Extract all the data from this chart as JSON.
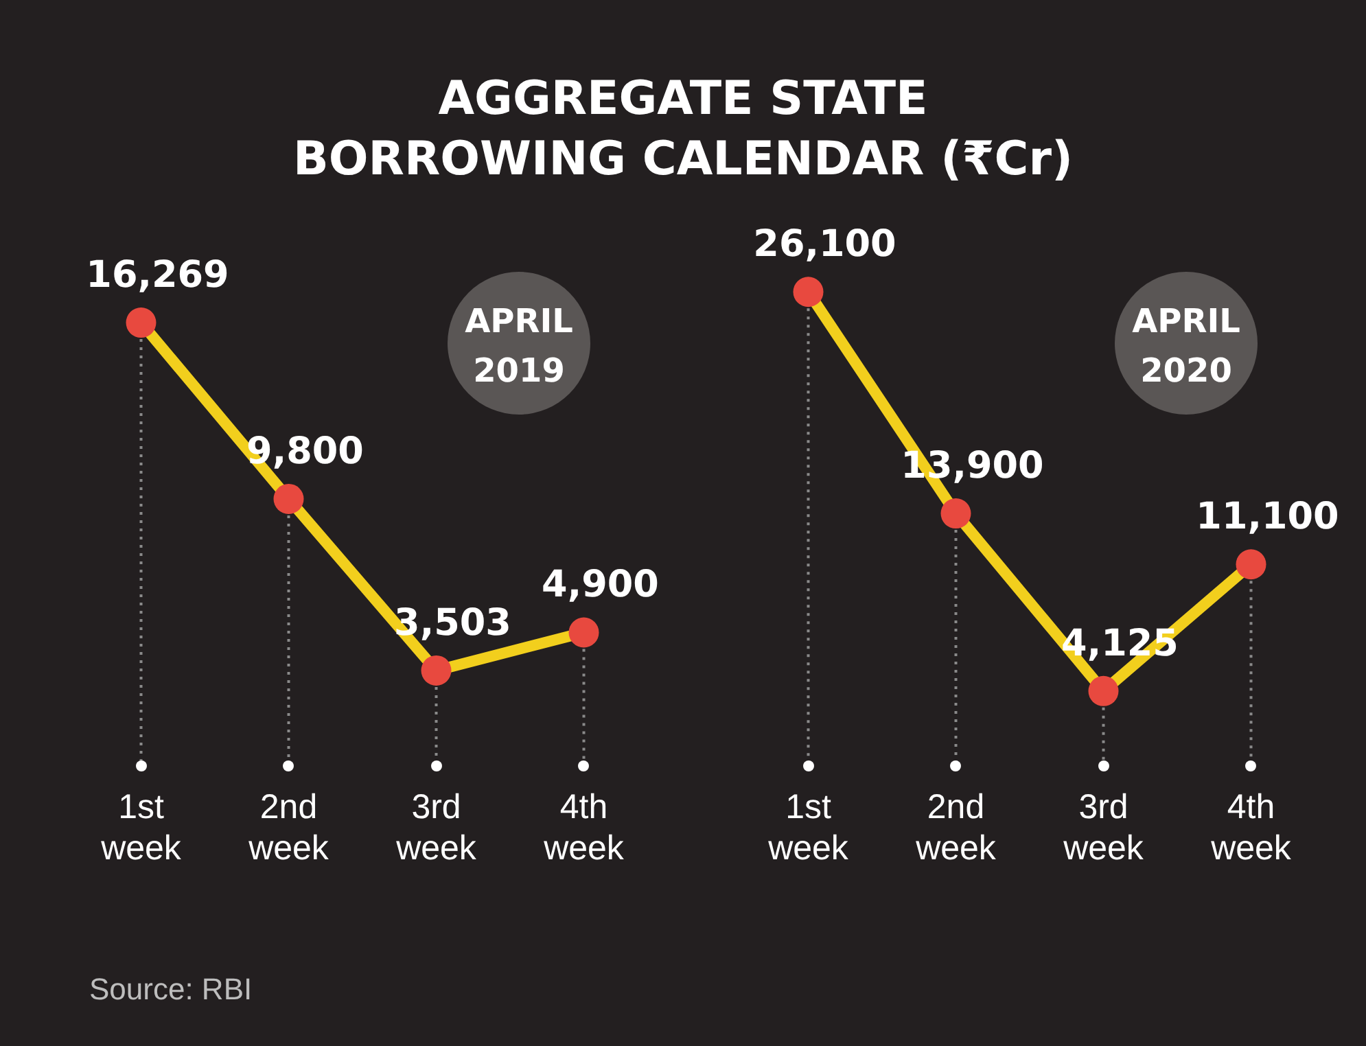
{
  "chart_data": [
    {
      "type": "line",
      "title": "AGGREGATE STATE BORROWING CALENDAR (₹Cr)",
      "subtitle": "APRIL 2019",
      "categories": [
        "1st week",
        "2nd week",
        "3rd week",
        "4th week"
      ],
      "series": [
        {
          "color": "#f2cf1d",
          "colors": [
            "#e8493f",
            "#e8493f",
            "#e8493f",
            "#e8493f"
          ],
          "values": [
            16269,
            9800,
            3503,
            4900
          ],
          "value_labels": [
            "16,269",
            "9,800",
            "3,503",
            "4,900"
          ]
        }
      ],
      "tick_labels": "x",
      "marker": "circle",
      "legend": false,
      "grid": "x",
      "annotations": [
        "Source: RBI"
      ]
    },
    {
      "type": "line",
      "subtitle": "APRIL 2020",
      "categories": [
        "1st week",
        "2nd week",
        "3rd week",
        "4th week"
      ],
      "series": [
        {
          "color": "#f2cf1d",
          "colors": [
            "#e8493f",
            "#e8493f",
            "#e8493f",
            "#e8493f"
          ],
          "values": [
            26100,
            13900,
            4125,
            11100
          ],
          "value_labels": [
            "26,100",
            "13,900",
            "4,125",
            "11,100"
          ]
        }
      ],
      "tick_labels": "x",
      "marker": "circle",
      "legend": false,
      "grid": "x"
    }
  ]
}
